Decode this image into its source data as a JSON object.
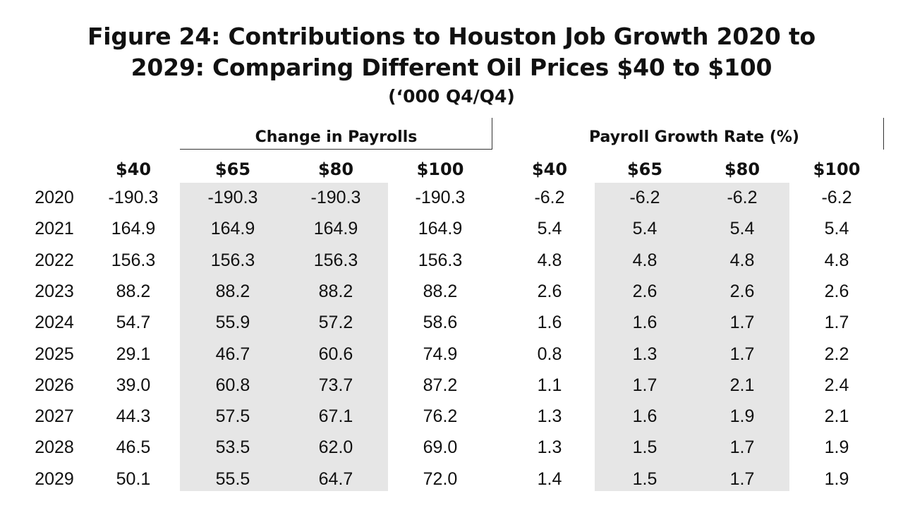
{
  "chart_data": {
    "type": "table",
    "title_line1": "Figure 24: Contributions to Houston Job Growth 2020 to",
    "title_line2": "2029: Comparing Different Oil Prices $40 to $100",
    "subtitle": "(‘000 Q4/Q4)",
    "groups": [
      {
        "label": "Change in Payrolls",
        "columns": [
          "$40",
          "$65",
          "$80",
          "$100"
        ]
      },
      {
        "label": "Payroll Growth Rate (%)",
        "columns": [
          "$40",
          "$65",
          "$80",
          "$100"
        ]
      }
    ],
    "rows": [
      {
        "year": "2020",
        "payrolls": [
          "-190.3",
          "-190.3",
          "-190.3",
          "-190.3"
        ],
        "growth": [
          "-6.2",
          "-6.2",
          "-6.2",
          "-6.2"
        ]
      },
      {
        "year": "2021",
        "payrolls": [
          "164.9",
          "164.9",
          "164.9",
          "164.9"
        ],
        "growth": [
          "5.4",
          "5.4",
          "5.4",
          "5.4"
        ]
      },
      {
        "year": "2022",
        "payrolls": [
          "156.3",
          "156.3",
          "156.3",
          "156.3"
        ],
        "growth": [
          "4.8",
          "4.8",
          "4.8",
          "4.8"
        ]
      },
      {
        "year": "2023",
        "payrolls": [
          "88.2",
          "88.2",
          "88.2",
          "88.2"
        ],
        "growth": [
          "2.6",
          "2.6",
          "2.6",
          "2.6"
        ]
      },
      {
        "year": "2024",
        "payrolls": [
          "54.7",
          "55.9",
          "57.2",
          "58.6"
        ],
        "growth": [
          "1.6",
          "1.6",
          "1.7",
          "1.7"
        ]
      },
      {
        "year": "2025",
        "payrolls": [
          "29.1",
          "46.7",
          "60.6",
          "74.9"
        ],
        "growth": [
          "0.8",
          "1.3",
          "1.7",
          "2.2"
        ]
      },
      {
        "year": "2026",
        "payrolls": [
          "39.0",
          "60.8",
          "73.7",
          "87.2"
        ],
        "growth": [
          "1.1",
          "1.7",
          "2.1",
          "2.4"
        ]
      },
      {
        "year": "2027",
        "payrolls": [
          "44.3",
          "57.5",
          "67.1",
          "76.2"
        ],
        "growth": [
          "1.3",
          "1.6",
          "1.9",
          "2.1"
        ]
      },
      {
        "year": "2028",
        "payrolls": [
          "46.5",
          "53.5",
          "62.0",
          "69.0"
        ],
        "growth": [
          "1.3",
          "1.5",
          "1.7",
          "1.9"
        ]
      },
      {
        "year": "2029",
        "payrolls": [
          "50.1",
          "55.5",
          "64.7",
          "72.0"
        ],
        "growth": [
          "1.4",
          "1.5",
          "1.7",
          "1.9"
        ]
      }
    ],
    "colors": {
      "shade": "#e6e6e6",
      "text": "#111111",
      "rule": "#333333"
    }
  }
}
